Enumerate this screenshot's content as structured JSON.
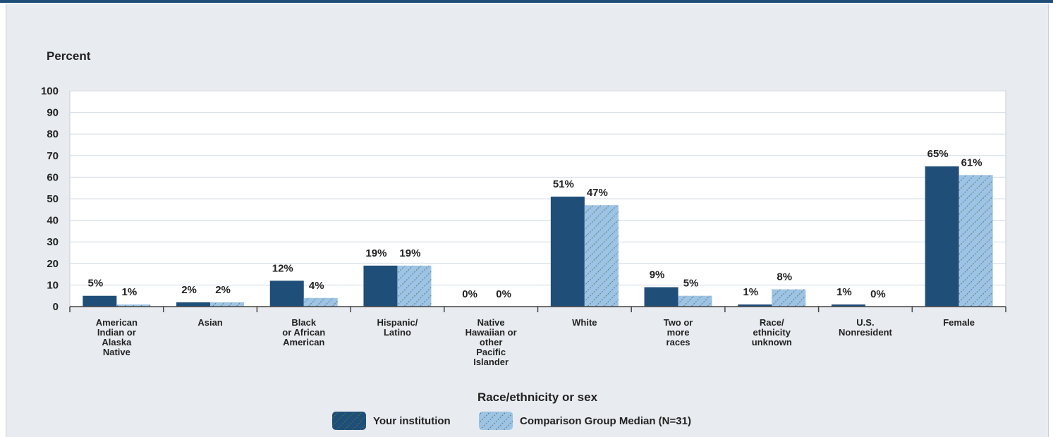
{
  "chart_data": {
    "type": "bar",
    "ylabel": "Percent",
    "xlabel": "Race/ethnicity or sex",
    "ylim": [
      0,
      100
    ],
    "yticks": [
      0,
      10,
      20,
      30,
      40,
      50,
      60,
      70,
      80,
      90,
      100
    ],
    "categories": [
      [
        "American",
        "Indian or",
        "Alaska",
        "Native"
      ],
      [
        "Asian"
      ],
      [
        "Black",
        "or African",
        "American"
      ],
      [
        "Hispanic/",
        "Latino"
      ],
      [
        "Native",
        "Hawaiian or",
        "other",
        "Pacific",
        "Islander"
      ],
      [
        "White"
      ],
      [
        "Two or",
        "more",
        "races"
      ],
      [
        "Race/",
        "ethnicity",
        "unknown"
      ],
      [
        "U.S.",
        "Nonresident"
      ],
      [
        "Female"
      ]
    ],
    "series": [
      {
        "name": "Your institution",
        "color": "#1f4e79",
        "pattern": "solid",
        "values": [
          5,
          2,
          12,
          19,
          0,
          51,
          9,
          1,
          1,
          65
        ]
      },
      {
        "name": "Comparison Group Median (N=31)",
        "color": "#9dc3e6",
        "pattern": "hatched",
        "values": [
          1,
          2,
          4,
          19,
          0,
          47,
          5,
          8,
          0,
          61
        ]
      }
    ],
    "value_suffix": "%",
    "grid": true,
    "legend": "bottom-center"
  }
}
